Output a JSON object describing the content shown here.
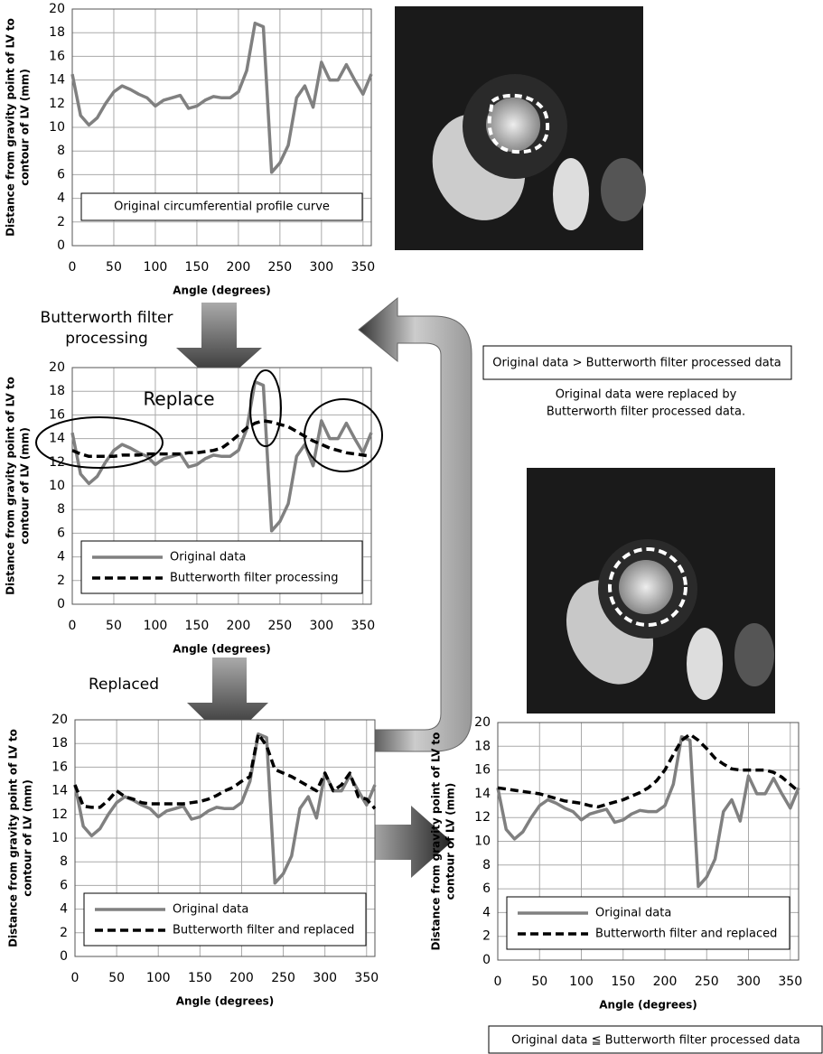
{
  "chart_data": [
    {
      "type": "line",
      "ylabel": [
        "Distance from gravity point of LV to",
        "contour of LV (mm)"
      ],
      "xlabel": "Angle (degrees)",
      "annotation": "Original circumferential profile curve",
      "x": [
        0,
        10,
        20,
        30,
        40,
        50,
        60,
        70,
        80,
        90,
        100,
        110,
        120,
        130,
        140,
        150,
        160,
        170,
        180,
        190,
        200,
        210,
        220,
        230,
        240,
        250,
        260,
        270,
        280,
        290,
        300,
        310,
        320,
        330,
        340,
        350,
        360
      ],
      "series": [
        {
          "name": "Original circumferential profile curve",
          "color": "#808080",
          "dash": false,
          "values": [
            14.5,
            11,
            10.2,
            10.8,
            12,
            13,
            13.5,
            13.2,
            12.8,
            12.5,
            11.8,
            12.3,
            12.5,
            12.7,
            11.6,
            11.8,
            12.3,
            12.6,
            12.5,
            12.5,
            13,
            14.8,
            18.8,
            18.5,
            6.2,
            7,
            8.5,
            12.5,
            13.5,
            11.7,
            15.5,
            14,
            14,
            15.3,
            14,
            12.8,
            14.5
          ]
        }
      ],
      "xlim": [
        0,
        360
      ],
      "xticks": [
        0,
        50,
        100,
        150,
        200,
        250,
        300,
        350
      ],
      "ylim": [
        0,
        20
      ],
      "yticks": [
        0,
        2,
        4,
        6,
        8,
        10,
        12,
        14,
        16,
        18,
        20
      ],
      "grid": true,
      "legend": false
    },
    {
      "type": "line",
      "ylabel": [
        "Distance from gravity point of LV to",
        "contour of LV (mm)"
      ],
      "xlabel": "Angle (degrees)",
      "annotation": "Replace",
      "x": [
        0,
        10,
        20,
        30,
        40,
        50,
        60,
        70,
        80,
        90,
        100,
        110,
        120,
        130,
        140,
        150,
        160,
        170,
        180,
        190,
        200,
        210,
        220,
        230,
        240,
        250,
        260,
        270,
        280,
        290,
        300,
        310,
        320,
        330,
        340,
        350,
        360
      ],
      "series": [
        {
          "name": "Original data",
          "color": "#808080",
          "dash": false,
          "values": [
            14.5,
            11,
            10.2,
            10.8,
            12,
            13,
            13.5,
            13.2,
            12.8,
            12.5,
            11.8,
            12.3,
            12.5,
            12.7,
            11.6,
            11.8,
            12.3,
            12.6,
            12.5,
            12.5,
            13,
            14.8,
            18.8,
            18.5,
            6.2,
            7,
            8.5,
            12.5,
            13.5,
            11.7,
            15.5,
            14,
            14,
            15.3,
            14,
            12.8,
            14.5
          ]
        },
        {
          "name": "Butterworth filter processing",
          "color": "#000000",
          "dash": true,
          "values": [
            13,
            12.7,
            12.5,
            12.5,
            12.5,
            12.5,
            12.6,
            12.6,
            12.6,
            12.7,
            12.7,
            12.7,
            12.7,
            12.7,
            12.8,
            12.8,
            12.9,
            13,
            13.2,
            13.7,
            14.3,
            14.9,
            15.3,
            15.5,
            15.4,
            15.2,
            15,
            14.6,
            14.2,
            13.8,
            13.5,
            13.2,
            13,
            12.8,
            12.7,
            12.6,
            12.5
          ]
        }
      ],
      "xlim": [
        0,
        360
      ],
      "xticks": [
        0,
        50,
        100,
        150,
        200,
        250,
        300,
        350
      ],
      "ylim": [
        0,
        20
      ],
      "yticks": [
        0,
        2,
        4,
        6,
        8,
        10,
        12,
        14,
        16,
        18,
        20
      ],
      "grid": true,
      "legend": "bottom"
    },
    {
      "type": "line",
      "ylabel": [
        "Distance from gravity point of LV to",
        "contour of LV (mm)"
      ],
      "xlabel": "Angle (degrees)",
      "x": [
        0,
        10,
        20,
        30,
        40,
        50,
        60,
        70,
        80,
        90,
        100,
        110,
        120,
        130,
        140,
        150,
        160,
        170,
        180,
        190,
        200,
        210,
        220,
        230,
        240,
        250,
        260,
        270,
        280,
        290,
        300,
        310,
        320,
        330,
        340,
        350,
        360
      ],
      "series": [
        {
          "name": "Original data",
          "color": "#808080",
          "dash": false,
          "values": [
            14.5,
            11,
            10.2,
            10.8,
            12,
            13,
            13.5,
            13.2,
            12.8,
            12.5,
            11.8,
            12.3,
            12.5,
            12.7,
            11.6,
            11.8,
            12.3,
            12.6,
            12.5,
            12.5,
            13,
            14.8,
            18.8,
            18.5,
            6.2,
            7,
            8.5,
            12.5,
            13.5,
            11.7,
            15.5,
            14,
            14,
            15.3,
            14,
            12.8,
            14.5
          ]
        },
        {
          "name": "Butterworth filter and replaced",
          "color": "#000000",
          "dash": true,
          "values": [
            14.5,
            12.7,
            12.6,
            12.6,
            13.2,
            14,
            13.5,
            13.3,
            13,
            12.9,
            12.9,
            12.9,
            12.9,
            12.9,
            13,
            13.1,
            13.3,
            13.6,
            14,
            14.3,
            14.8,
            15.2,
            18.8,
            17.8,
            15.8,
            15.5,
            15.2,
            14.8,
            14.4,
            14,
            15.5,
            14,
            14.5,
            15.5,
            13.5,
            13.3,
            12.5
          ]
        }
      ],
      "xlim": [
        0,
        360
      ],
      "xticks": [
        0,
        50,
        100,
        150,
        200,
        250,
        300,
        350
      ],
      "ylim": [
        0,
        20
      ],
      "yticks": [
        0,
        2,
        4,
        6,
        8,
        10,
        12,
        14,
        16,
        18,
        20
      ],
      "grid": true,
      "legend": "bottom"
    },
    {
      "type": "line",
      "ylabel": [
        "Distance from gravity point of LV to",
        "contour of LV (mm)"
      ],
      "xlabel": "Angle (degrees)",
      "x": [
        0,
        10,
        20,
        30,
        40,
        50,
        60,
        70,
        80,
        90,
        100,
        110,
        120,
        130,
        140,
        150,
        160,
        170,
        180,
        190,
        200,
        210,
        220,
        230,
        240,
        250,
        260,
        270,
        280,
        290,
        300,
        310,
        320,
        330,
        340,
        350,
        360
      ],
      "series": [
        {
          "name": "Original data",
          "color": "#808080",
          "dash": false,
          "values": [
            14.5,
            11,
            10.2,
            10.8,
            12,
            13,
            13.5,
            13.2,
            12.8,
            12.5,
            11.8,
            12.3,
            12.5,
            12.7,
            11.6,
            11.8,
            12.3,
            12.6,
            12.5,
            12.5,
            13,
            14.8,
            18.8,
            18.5,
            6.2,
            7,
            8.5,
            12.5,
            13.5,
            11.7,
            15.5,
            14,
            14,
            15.3,
            14,
            12.8,
            14.5
          ]
        },
        {
          "name": "Butterworth filter and replaced",
          "color": "#000000",
          "dash": true,
          "values": [
            14.5,
            14.4,
            14.3,
            14.2,
            14.1,
            14,
            13.8,
            13.6,
            13.4,
            13.3,
            13.2,
            13,
            12.9,
            13.1,
            13.3,
            13.5,
            13.8,
            14.1,
            14.5,
            15.1,
            16,
            17.3,
            18.5,
            19,
            18.5,
            17.8,
            17,
            16.5,
            16.1,
            16,
            16,
            16,
            16,
            15.8,
            15.4,
            14.8,
            14.2
          ]
        }
      ],
      "xlim": [
        0,
        360
      ],
      "xticks": [
        0,
        50,
        100,
        150,
        200,
        250,
        300,
        350
      ],
      "ylim": [
        0,
        20
      ],
      "yticks": [
        0,
        2,
        4,
        6,
        8,
        10,
        12,
        14,
        16,
        18,
        20
      ],
      "grid": true,
      "legend": "bottom"
    }
  ],
  "figure": {
    "step1": [
      "Butterworth filter",
      "processing"
    ],
    "step2": "Replaced",
    "condition_greater": "Original data > Butterworth filter processed data",
    "replaced_note": [
      "Original data were replaced by",
      "Butterworth filter processed data."
    ],
    "condition_le": "Original data ≦ Butterworth filter processed data"
  }
}
